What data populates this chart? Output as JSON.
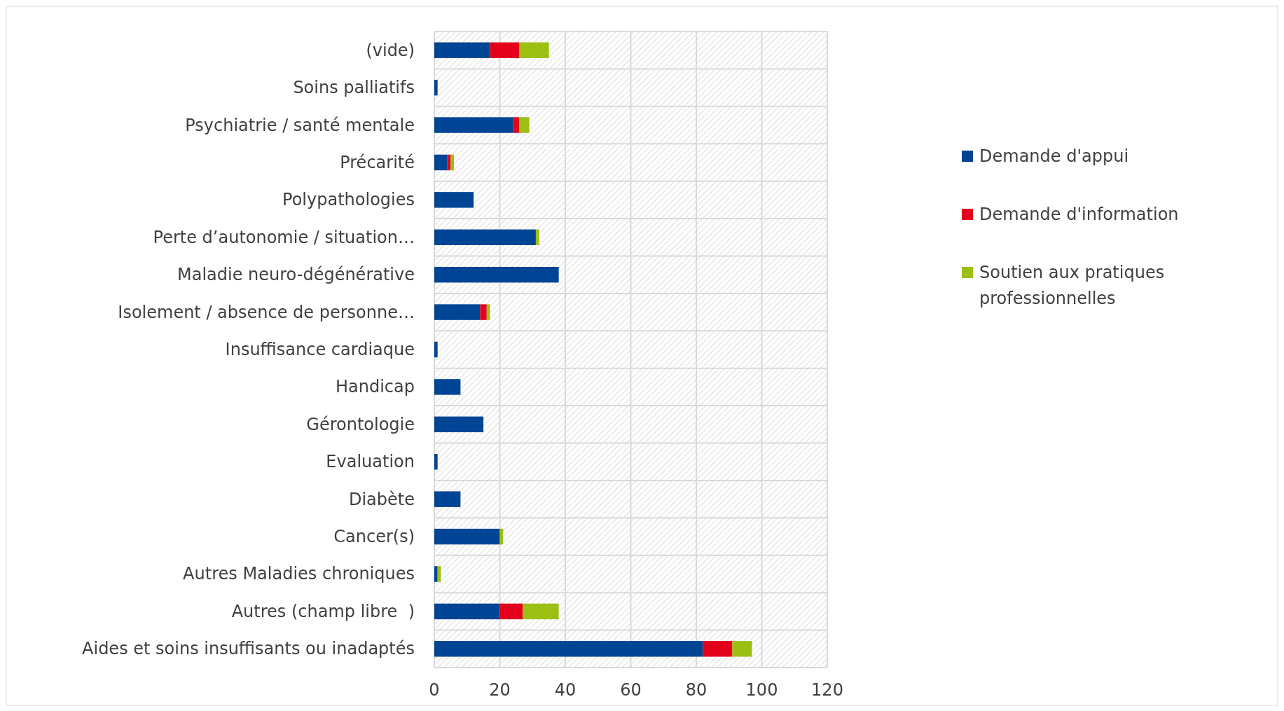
{
  "chart_data": {
    "type": "bar",
    "orientation": "horizontal",
    "stacked": true,
    "categories": [
      "(vide)",
      "Soins palliatifs",
      "Psychiatrie / santé mentale",
      "Précarité",
      "Polypathologies",
      "Perte d’autonomie / situation…",
      "Maladie neuro-dégénérative",
      "Isolement / absence de personne…",
      "Insuffisance cardiaque",
      "Handicap",
      "Gérontologie",
      "Evaluation",
      "Diabète",
      "Cancer(s)",
      "Autres Maladies chroniques",
      "Autres (champ libre  )",
      "Aides et soins insuffisants ou inadaptés"
    ],
    "series": [
      {
        "name": "Demande d'appui",
        "color": "#004494",
        "values": [
          17,
          1,
          24,
          4,
          12,
          31,
          38,
          14,
          1,
          8,
          15,
          1,
          8,
          20,
          1,
          20,
          82
        ]
      },
      {
        "name": "Demande d'information",
        "color": "#e2001a",
        "values": [
          9,
          null,
          2,
          1,
          null,
          null,
          null,
          2,
          null,
          null,
          null,
          null,
          null,
          null,
          null,
          7,
          9
        ]
      },
      {
        "name": "Soutien aux pratiques professionnelles",
        "color": "#9bbf13",
        "values": [
          9,
          null,
          3,
          1,
          null,
          1,
          null,
          1,
          null,
          null,
          null,
          null,
          null,
          1,
          1,
          11,
          6
        ]
      }
    ],
    "xlim": [
      0,
      120
    ],
    "xticks": [
      0,
      20,
      40,
      60,
      80,
      100,
      120
    ],
    "grid": true,
    "legend": "right"
  }
}
